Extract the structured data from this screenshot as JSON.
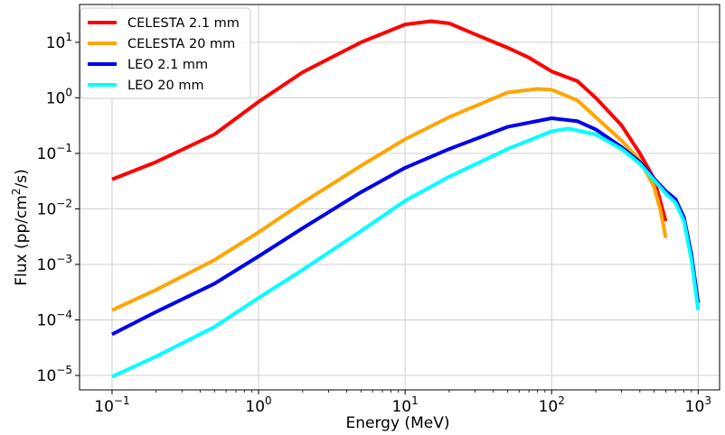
{
  "chart_data": {
    "type": "line",
    "xlabel": "Energy (MeV)",
    "ylabel_main": "Flux (pp/cm",
    "ylabel_sup": "2",
    "ylabel_tail": "/s)",
    "xscale": "log",
    "yscale": "log",
    "xlim": [
      0.06,
      1400
    ],
    "ylim": [
      5.5e-06,
      48
    ],
    "grid": true,
    "legend_position": "top-left",
    "xticks": [
      {
        "value": 0.1,
        "base": "10",
        "exp": "−1"
      },
      {
        "value": 1,
        "base": "10",
        "exp": "0"
      },
      {
        "value": 10,
        "base": "10",
        "exp": "1"
      },
      {
        "value": 100,
        "base": "10",
        "exp": "2"
      },
      {
        "value": 1000,
        "base": "10",
        "exp": "3"
      }
    ],
    "yticks": [
      {
        "value": 1e-05,
        "base": "10",
        "exp": "−5"
      },
      {
        "value": 0.0001,
        "base": "10",
        "exp": "−4"
      },
      {
        "value": 0.001,
        "base": "10",
        "exp": "−3"
      },
      {
        "value": 0.01,
        "base": "10",
        "exp": "−2"
      },
      {
        "value": 0.1,
        "base": "10",
        "exp": "−1"
      },
      {
        "value": 1,
        "base": "10",
        "exp": "0"
      },
      {
        "value": 10,
        "base": "10",
        "exp": "1"
      }
    ],
    "series": [
      {
        "name": "CELESTA 2.1 mm",
        "color": "#ff0000",
        "points": [
          [
            0.1,
            0.034
          ],
          [
            0.2,
            0.07
          ],
          [
            0.5,
            0.22
          ],
          [
            1,
            0.85
          ],
          [
            2,
            2.9
          ],
          [
            5,
            10
          ],
          [
            10,
            21
          ],
          [
            15,
            24
          ],
          [
            20,
            22
          ],
          [
            30,
            14
          ],
          [
            50,
            8
          ],
          [
            70,
            5.3
          ],
          [
            100,
            3.0
          ],
          [
            150,
            2.0
          ],
          [
            200,
            1.0
          ],
          [
            300,
            0.32
          ],
          [
            400,
            0.1
          ],
          [
            500,
            0.035
          ],
          [
            560,
            0.012
          ],
          [
            600,
            0.006
          ]
        ]
      },
      {
        "name": "CELESTA 20 mm",
        "color": "#ffa500",
        "points": [
          [
            0.1,
            0.00015
          ],
          [
            0.2,
            0.00035
          ],
          [
            0.5,
            0.0012
          ],
          [
            1,
            0.0038
          ],
          [
            2,
            0.013
          ],
          [
            5,
            0.06
          ],
          [
            10,
            0.18
          ],
          [
            20,
            0.45
          ],
          [
            50,
            1.25
          ],
          [
            80,
            1.45
          ],
          [
            100,
            1.4
          ],
          [
            150,
            0.9
          ],
          [
            200,
            0.45
          ],
          [
            300,
            0.17
          ],
          [
            400,
            0.075
          ],
          [
            500,
            0.025
          ],
          [
            550,
            0.01
          ],
          [
            580,
            0.005
          ],
          [
            600,
            0.003
          ]
        ]
      },
      {
        "name": "LEO 2.1 mm",
        "color": "#0000ee",
        "points": [
          [
            0.1,
            5.5e-05
          ],
          [
            0.2,
            0.00014
          ],
          [
            0.5,
            0.00045
          ],
          [
            1,
            0.0014
          ],
          [
            2,
            0.0045
          ],
          [
            5,
            0.02
          ],
          [
            10,
            0.055
          ],
          [
            20,
            0.12
          ],
          [
            50,
            0.3
          ],
          [
            100,
            0.43
          ],
          [
            150,
            0.38
          ],
          [
            200,
            0.27
          ],
          [
            300,
            0.13
          ],
          [
            400,
            0.07
          ],
          [
            500,
            0.035
          ],
          [
            600,
            0.021
          ],
          [
            700,
            0.015
          ],
          [
            800,
            0.007
          ],
          [
            900,
            0.0015
          ],
          [
            1000,
            0.0002
          ]
        ]
      },
      {
        "name": "LEO 20 mm",
        "color": "#00ffff",
        "points": [
          [
            0.1,
            9.5e-06
          ],
          [
            0.2,
            2.2e-05
          ],
          [
            0.5,
            7.5e-05
          ],
          [
            1,
            0.00025
          ],
          [
            2,
            0.0008
          ],
          [
            5,
            0.004
          ],
          [
            10,
            0.014
          ],
          [
            20,
            0.038
          ],
          [
            50,
            0.12
          ],
          [
            100,
            0.25
          ],
          [
            130,
            0.28
          ],
          [
            200,
            0.22
          ],
          [
            300,
            0.12
          ],
          [
            400,
            0.065
          ],
          [
            500,
            0.033
          ],
          [
            600,
            0.019
          ],
          [
            700,
            0.013
          ],
          [
            800,
            0.006
          ],
          [
            900,
            0.0012
          ],
          [
            1000,
            0.00015
          ]
        ]
      }
    ]
  }
}
